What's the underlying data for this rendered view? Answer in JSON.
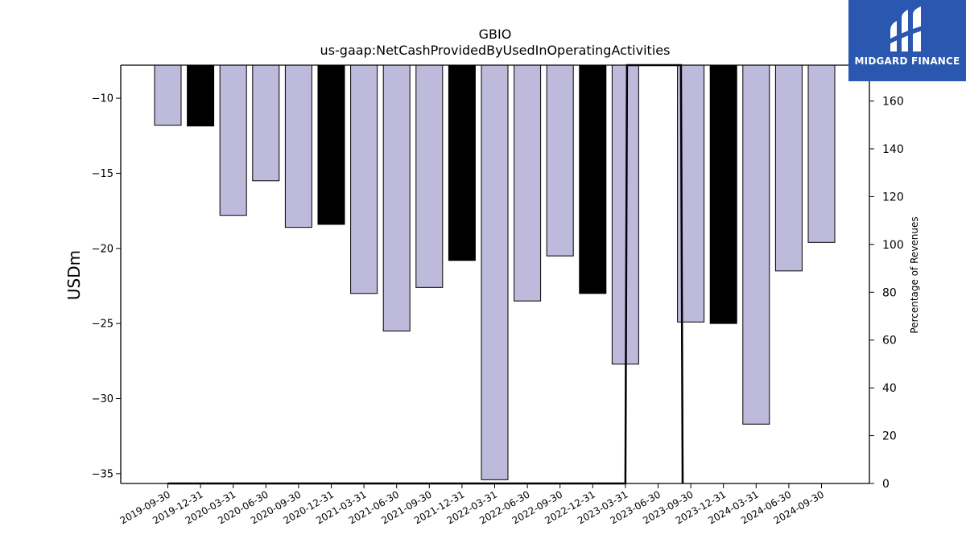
{
  "brand": {
    "name": "MIDGARD FINANCE",
    "bg": "#2a57b0"
  },
  "colors": {
    "bar_default": "#bebadb",
    "bar_q4": "#000000",
    "edge": "#000000",
    "line": "#000000"
  },
  "chart_data": {
    "type": "bar",
    "title": "GBIO",
    "subtitle": "us-gaap:NetCashProvidedByUsedInOperatingActivities",
    "ylabel": "USDm",
    "y2label": "Percentage of Revenues",
    "ylim": [
      -35.65,
      -7.8
    ],
    "y2lim": [
      0,
      175
    ],
    "yticks": [
      -10,
      -15,
      -20,
      -25,
      -30,
      -35
    ],
    "y2ticks": [
      0,
      20,
      40,
      60,
      80,
      100,
      120,
      140,
      160
    ],
    "categories": [
      "2019-09-30",
      "2019-12-31",
      "2020-03-31",
      "2020-06-30",
      "2020-09-30",
      "2020-12-31",
      "2021-03-31",
      "2021-06-30",
      "2021-09-30",
      "2021-12-31",
      "2022-03-31",
      "2022-06-30",
      "2022-09-30",
      "2022-12-31",
      "2023-03-31",
      "2023-06-30",
      "2023-09-30",
      "2023-12-31",
      "2024-03-31",
      "2024-06-30",
      "2024-09-30"
    ],
    "values": [
      -11.8,
      -11.85,
      -17.8,
      -15.5,
      -18.6,
      -18.4,
      -23.0,
      -25.5,
      -22.6,
      -20.8,
      -35.4,
      -23.5,
      -20.5,
      -23.0,
      -27.7,
      null,
      -24.9,
      -25.0,
      -31.7,
      -21.5,
      -19.6
    ],
    "q4_highlight": [
      false,
      true,
      false,
      false,
      false,
      true,
      false,
      false,
      false,
      true,
      false,
      false,
      false,
      true,
      false,
      false,
      false,
      true,
      false,
      false,
      false
    ],
    "secondary_series": {
      "type": "line",
      "points": [
        [
          0,
          0
        ],
        [
          1,
          0
        ],
        [
          2,
          0
        ],
        [
          3,
          0
        ],
        [
          4,
          0
        ],
        [
          5,
          0
        ],
        [
          6,
          0
        ],
        [
          7,
          0
        ],
        [
          8,
          0
        ],
        [
          9,
          0
        ],
        [
          10,
          0
        ],
        [
          11,
          0
        ],
        [
          12,
          0
        ],
        [
          13,
          0
        ],
        [
          14,
          0
        ],
        [
          14.05,
          175
        ],
        [
          15.7,
          175
        ],
        [
          15.75,
          0
        ]
      ]
    }
  }
}
